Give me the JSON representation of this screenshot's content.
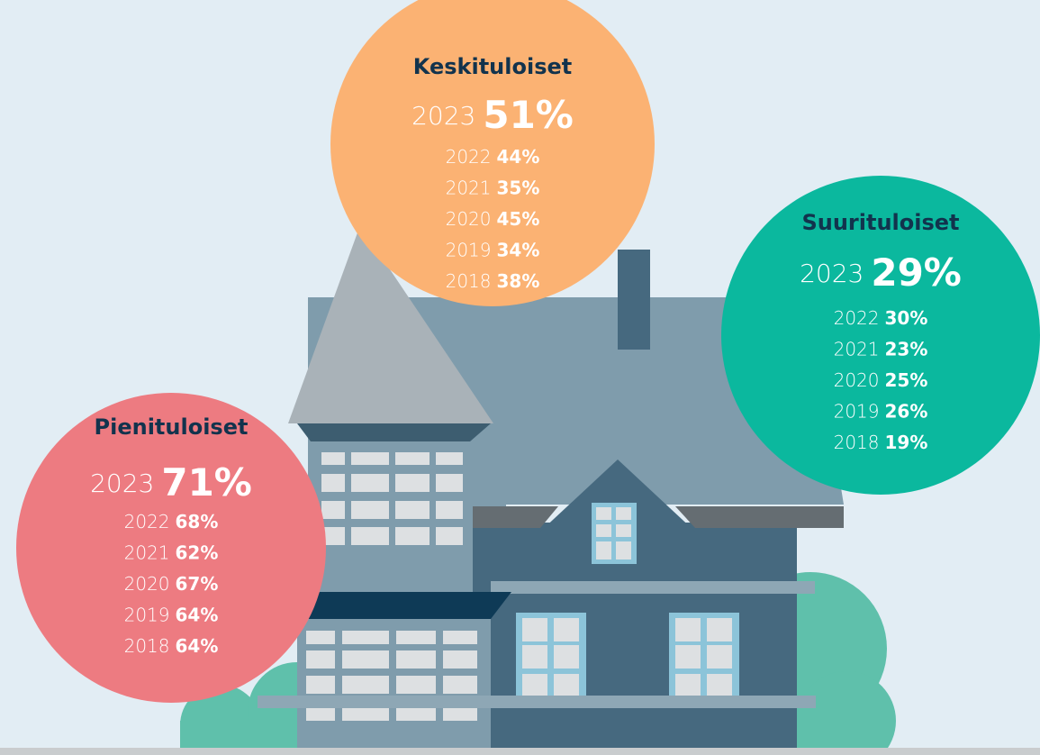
{
  "groups": [
    {
      "title": "Keskituloiset",
      "rows": [
        {
          "year": "2023",
          "value": "51%"
        },
        {
          "year": "2022",
          "value": "44%"
        },
        {
          "year": "2021",
          "value": "35%"
        },
        {
          "year": "2020",
          "value": "45%"
        },
        {
          "year": "2019",
          "value": "34%"
        },
        {
          "year": "2018",
          "value": "38%"
        }
      ]
    },
    {
      "title": "Suurituloiset",
      "rows": [
        {
          "year": "2023",
          "value": "29%"
        },
        {
          "year": "2022",
          "value": "30%"
        },
        {
          "year": "2021",
          "value": "23%"
        },
        {
          "year": "2020",
          "value": "25%"
        },
        {
          "year": "2019",
          "value": "26%"
        },
        {
          "year": "2018",
          "value": "19%"
        }
      ]
    },
    {
      "title": "Pienituloiset",
      "rows": [
        {
          "year": "2023",
          "value": "71%"
        },
        {
          "year": "2022",
          "value": "68%"
        },
        {
          "year": "2021",
          "value": "62%"
        },
        {
          "year": "2020",
          "value": "67%"
        },
        {
          "year": "2019",
          "value": "64%"
        },
        {
          "year": "2018",
          "value": "64%"
        }
      ]
    }
  ]
}
